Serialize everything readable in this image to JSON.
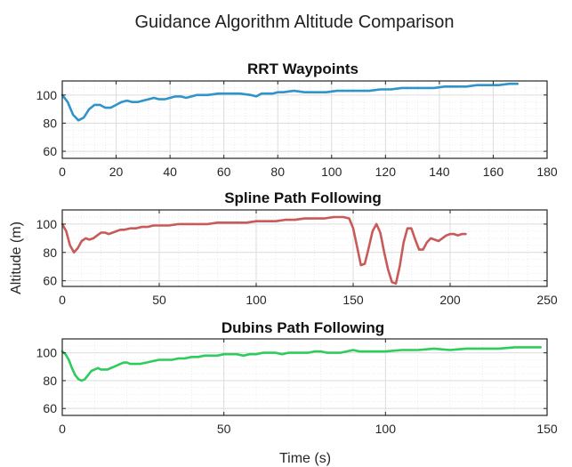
{
  "figure": {
    "title": "Guidance Algorithm Altitude Comparison",
    "ylabel": "Altitude (m)",
    "xlabel": "Time (s)"
  },
  "chart_data": [
    {
      "type": "line",
      "title": "RRT Waypoints",
      "xlim": [
        0,
        180
      ],
      "ylim": [
        55,
        110
      ],
      "xticks": [
        0,
        20,
        40,
        60,
        80,
        100,
        120,
        140,
        160,
        180
      ],
      "yticks": [
        60,
        80,
        100
      ],
      "grid": true,
      "color": "#2f94c9",
      "series": [
        {
          "x": [
            0,
            2,
            4,
            6,
            8,
            10,
            12,
            14,
            16,
            18,
            20,
            22,
            24,
            26,
            28,
            30,
            32,
            34,
            36,
            38,
            40,
            42,
            44,
            46,
            48,
            50,
            54,
            58,
            62,
            66,
            70,
            72,
            74,
            78,
            80,
            82,
            86,
            90,
            94,
            98,
            102,
            106,
            110,
            114,
            118,
            122,
            126,
            130,
            134,
            138,
            142,
            146,
            150,
            154,
            158,
            162,
            166,
            169
          ],
          "y": [
            100,
            95,
            86,
            82,
            84,
            90,
            93,
            93,
            91,
            91,
            93,
            95,
            96,
            95,
            95,
            96,
            97,
            98,
            97,
            97,
            98,
            99,
            99,
            98,
            99,
            100,
            100,
            101,
            101,
            101,
            100,
            99,
            101,
            101,
            102,
            102,
            103,
            102,
            102,
            102,
            103,
            103,
            103,
            103,
            104,
            104,
            105,
            105,
            105,
            105,
            106,
            106,
            106,
            107,
            107,
            107,
            108,
            108
          ]
        }
      ]
    },
    {
      "type": "line",
      "title": "Spline Path Following",
      "xlim": [
        0,
        250
      ],
      "ylim": [
        56,
        110
      ],
      "xticks": [
        0,
        50,
        100,
        150,
        200,
        250
      ],
      "yticks": [
        60,
        80,
        100
      ],
      "grid": true,
      "color": "#c85a5a",
      "series": [
        {
          "x": [
            0,
            2,
            4,
            6,
            8,
            10,
            12,
            14,
            16,
            18,
            20,
            22,
            24,
            26,
            28,
            30,
            32,
            35,
            38,
            41,
            44,
            47,
            50,
            55,
            60,
            65,
            70,
            75,
            80,
            85,
            90,
            95,
            100,
            105,
            110,
            115,
            120,
            125,
            130,
            135,
            140,
            145,
            148,
            150,
            152,
            154,
            156,
            158,
            160,
            162,
            164,
            166,
            168,
            170,
            172,
            174,
            176,
            178,
            180,
            182,
            184,
            186,
            188,
            190,
            192,
            194,
            196,
            198,
            200,
            202,
            204,
            206,
            208
          ],
          "y": [
            100,
            95,
            85,
            80,
            83,
            88,
            90,
            89,
            90,
            92,
            94,
            94,
            93,
            94,
            95,
            96,
            96,
            97,
            97,
            98,
            98,
            99,
            99,
            99,
            100,
            100,
            100,
            100,
            101,
            101,
            101,
            101,
            102,
            102,
            102,
            103,
            103,
            104,
            104,
            104,
            105,
            105,
            104,
            97,
            84,
            71,
            72,
            83,
            95,
            100,
            94,
            80,
            68,
            59,
            58,
            70,
            87,
            97,
            97,
            89,
            82,
            82,
            87,
            90,
            89,
            88,
            90,
            92,
            93,
            93,
            92,
            93,
            93
          ]
        }
      ]
    },
    {
      "type": "line",
      "title": "Dubins Path Following",
      "xlim": [
        0,
        150
      ],
      "ylim": [
        55,
        110
      ],
      "xticks": [
        0,
        50,
        100,
        150
      ],
      "yticks": [
        60,
        80,
        100
      ],
      "grid": true,
      "color": "#2ecc5c",
      "series": [
        {
          "x": [
            0,
            1,
            2,
            3,
            4,
            5,
            6,
            7,
            8,
            9,
            10,
            11,
            12,
            13,
            14,
            15,
            16,
            17,
            18,
            19,
            20,
            21,
            22,
            24,
            26,
            28,
            30,
            32,
            34,
            36,
            38,
            40,
            42,
            44,
            46,
            48,
            50,
            52,
            54,
            56,
            58,
            60,
            62,
            64,
            66,
            68,
            70,
            72,
            74,
            76,
            78,
            80,
            82,
            84,
            86,
            88,
            90,
            92,
            95,
            100,
            105,
            110,
            115,
            120,
            125,
            130,
            135,
            140,
            145,
            148
          ],
          "y": [
            101,
            99,
            95,
            89,
            84,
            81,
            80,
            81,
            84,
            87,
            88,
            89,
            88,
            88,
            88,
            89,
            90,
            91,
            92,
            93,
            93,
            92,
            92,
            92,
            93,
            94,
            95,
            95,
            95,
            96,
            96,
            97,
            97,
            98,
            98,
            98,
            99,
            99,
            99,
            98,
            99,
            99,
            100,
            100,
            100,
            99,
            100,
            100,
            100,
            100,
            101,
            101,
            100,
            100,
            100,
            101,
            102,
            101,
            101,
            101,
            102,
            102,
            103,
            102,
            103,
            103,
            103,
            104,
            104,
            104
          ]
        }
      ]
    }
  ]
}
